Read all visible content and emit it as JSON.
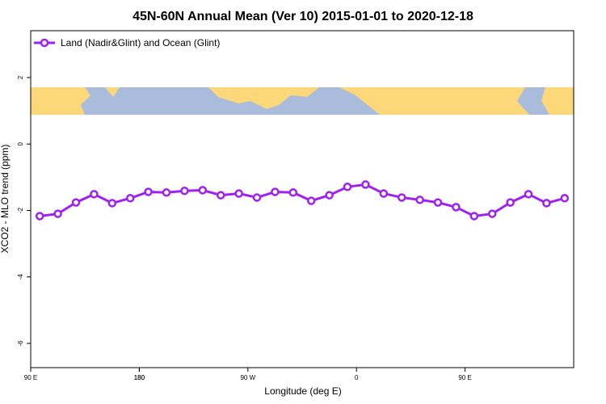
{
  "chart_data": {
    "type": "line",
    "title": "45N-60N Annual Mean (Ver 10)   2015-01-01 to 2020-12-18",
    "x_label": "Longitude (deg E)",
    "y_label": "XCO2 - MLO trend (ppm)",
    "x": [
      97.5,
      112.5,
      127.5,
      142.5,
      157.5,
      172.5,
      187.5,
      202.5,
      217.5,
      232.5,
      247.5,
      262.5,
      277.5,
      292.5,
      307.5,
      322.5,
      337.5,
      352.5,
      367.5,
      382.5,
      397.5,
      412.5,
      427.5,
      442.5,
      457.5,
      472.5,
      487.5,
      502.5,
      517.5,
      532.5
    ],
    "series": [
      {
        "name": "Land (Nadir&Glint) and Ocean (Glint)",
        "color": "#a020f0",
        "values": [
          -2.17,
          -2.1,
          -1.76,
          -1.51,
          -1.78,
          -1.63,
          -1.44,
          -1.46,
          -1.41,
          -1.39,
          -1.54,
          -1.49,
          -1.61,
          -1.44,
          -1.46,
          -1.71,
          -1.54,
          -1.29,
          -1.22,
          -1.49,
          -1.61,
          -1.68,
          -1.76,
          -1.9,
          -2.17,
          -2.1,
          -1.76,
          -1.51,
          -1.78,
          -1.63
        ]
      }
    ],
    "xlim": [
      90,
      540
    ],
    "xticks": [
      {
        "value": 90,
        "label": "90 E"
      },
      180,
      {
        "value": 270,
        "label": "90 W"
      },
      {
        "value": 360,
        "label": "0"
      },
      {
        "value": 450,
        "label": "90 E"
      },
      180.0001
    ],
    "ylim": [
      -6.73,
      3.41
    ],
    "yticks": [
      -6,
      -4,
      -2,
      0,
      2
    ],
    "legend": "top-left"
  }
}
